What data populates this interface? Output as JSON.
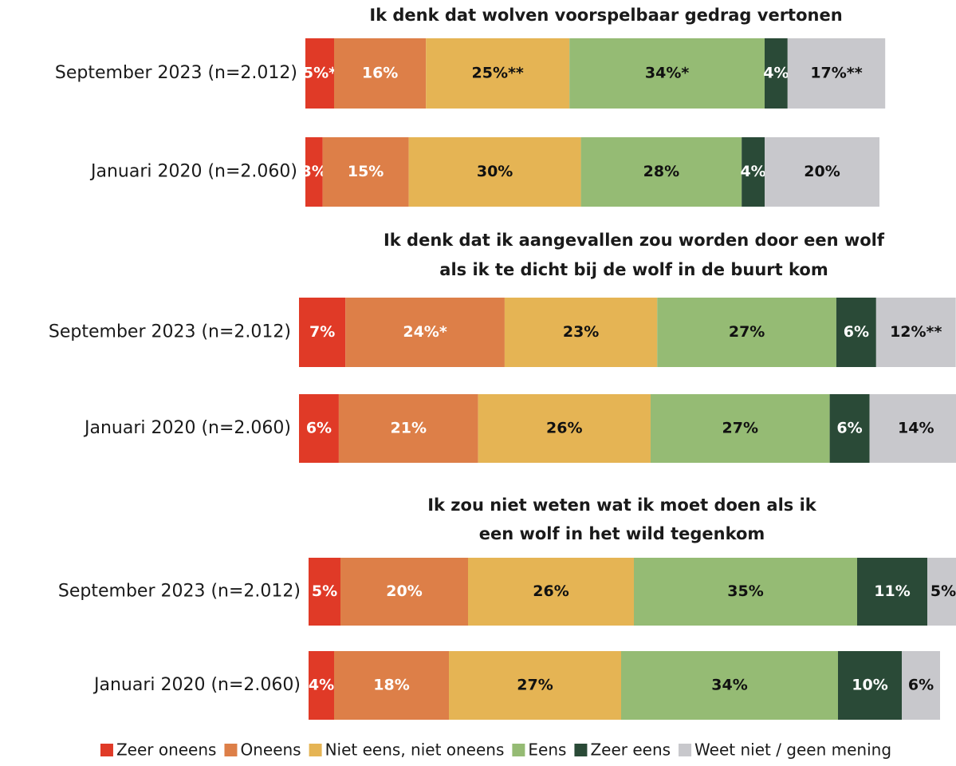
{
  "chart_data": [
    {
      "type": "bar",
      "orientation": "horizontal",
      "stacked": true,
      "title": [
        "Ik denk dat wolven voorspelbaar gedrag vertonen"
      ],
      "categories": [
        "September 2023 (n=2.012)",
        "Januari 2020 (n=2.060)"
      ],
      "series": [
        {
          "name": "Zeer oneens",
          "color": "#e03a27",
          "values": [
            5,
            3
          ],
          "value_labels": [
            "5%*",
            "3%"
          ]
        },
        {
          "name": "Oneens",
          "color": "#dd7f48",
          "values": [
            16,
            15
          ],
          "value_labels": [
            "16%",
            "15%"
          ]
        },
        {
          "name": "Niet eens, niet oneens",
          "color": "#e5b454",
          "values": [
            25,
            30
          ],
          "value_labels": [
            "25%**",
            "30%"
          ]
        },
        {
          "name": "Eens",
          "color": "#95bb74",
          "values": [
            34,
            28
          ],
          "value_labels": [
            "34%*",
            "28%"
          ]
        },
        {
          "name": "Zeer eens",
          "color": "#2a4a37",
          "values": [
            4,
            4
          ],
          "value_labels": [
            "4%",
            "4%"
          ]
        },
        {
          "name": "Weet niet / geen mening",
          "color": "#c8c8cc",
          "values": [
            17,
            20
          ],
          "value_labels": [
            "17%**",
            "20%"
          ]
        }
      ]
    },
    {
      "type": "bar",
      "orientation": "horizontal",
      "stacked": true,
      "title": [
        "Ik denk dat ik aangevallen zou worden door een wolf",
        "als ik te dicht bij de wolf in de buurt kom"
      ],
      "categories": [
        "September 2023 (n=2.012)",
        "Januari 2020 (n=2.060)"
      ],
      "series": [
        {
          "color": "#e03a27",
          "values": [
            7,
            6
          ],
          "value_labels": [
            "7%",
            "6%"
          ]
        },
        {
          "color": "#dd7f48",
          "values": [
            24,
            21
          ],
          "value_labels": [
            "24%*",
            "21%"
          ]
        },
        {
          "color": "#e5b454",
          "values": [
            23,
            26
          ],
          "value_labels": [
            "23%",
            "26%"
          ]
        },
        {
          "color": "#95bb74",
          "values": [
            27,
            27
          ],
          "value_labels": [
            "27%",
            "27%"
          ]
        },
        {
          "color": "#2a4a37",
          "values": [
            6,
            6
          ],
          "value_labels": [
            "6%",
            "6%"
          ]
        },
        {
          "color": "#c8c8cc",
          "values": [
            12,
            14
          ],
          "value_labels": [
            "12%**",
            "14%"
          ]
        }
      ]
    },
    {
      "type": "bar",
      "orientation": "horizontal",
      "stacked": true,
      "title": [
        "Ik zou niet weten wat ik moet doen als ik",
        "een wolf in het wild tegenkom"
      ],
      "categories": [
        "September 2023 (n=2.012)",
        "Januari 2020 (n=2.060)"
      ],
      "series": [
        {
          "color": "#e03a27",
          "values": [
            5,
            4
          ],
          "value_labels": [
            "5%",
            "4%"
          ]
        },
        {
          "color": "#dd7f48",
          "values": [
            20,
            18
          ],
          "value_labels": [
            "20%",
            "18%"
          ]
        },
        {
          "color": "#e5b454",
          "values": [
            26,
            27
          ],
          "value_labels": [
            "26%",
            "27%"
          ]
        },
        {
          "color": "#95bb74",
          "values": [
            35,
            34
          ],
          "value_labels": [
            "35%",
            "34%"
          ]
        },
        {
          "color": "#2a4a37",
          "values": [
            11,
            10
          ],
          "value_labels": [
            "11%",
            "10%"
          ]
        },
        {
          "color": "#c8c8cc",
          "values": [
            5,
            6
          ],
          "value_labels": [
            "5%",
            "6%"
          ]
        }
      ]
    }
  ]
}
